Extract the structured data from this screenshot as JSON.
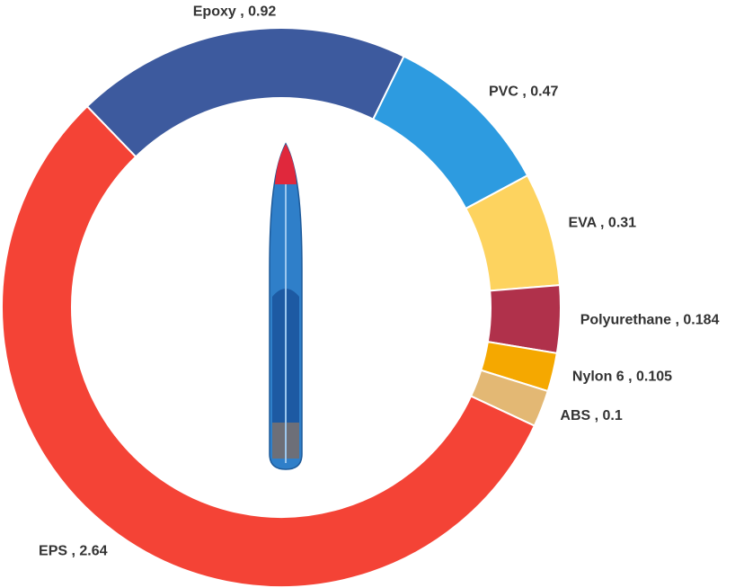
{
  "chart_data": {
    "type": "donut",
    "values": [
      0.92,
      0.47,
      0.31,
      0.184,
      0.105,
      0.1,
      2.64
    ],
    "value_labels": [
      "Epoxy , 0.92",
      "PVC , 0.47",
      "EVA , 0.31",
      "Polyurethane , 0.184",
      "Nylon 6 , 0.105",
      "ABS , 0.1",
      "EPS , 2.64"
    ],
    "colors": [
      "#3d5a9e",
      "#2d9be0",
      "#fdd35f",
      "#b0314b",
      "#f5a800",
      "#e3b874",
      "#f44336"
    ]
  }
}
